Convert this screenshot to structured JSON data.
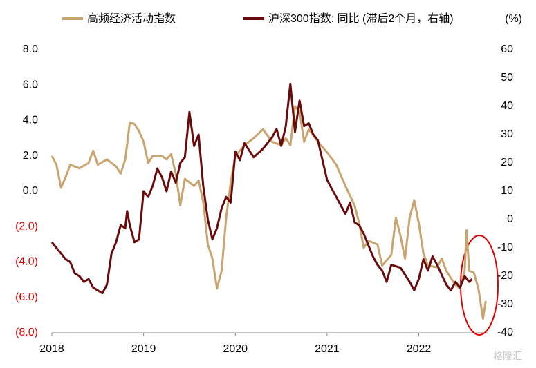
{
  "chart_data": {
    "type": "line",
    "y2_label": "(%)",
    "watermark": "格隆汇",
    "xlim": [
      2018,
      2022.75
    ],
    "xticks": [
      2018,
      2019,
      2020,
      2021,
      2022
    ],
    "ylim": [
      -8,
      8
    ],
    "yticks": [
      {
        "value": 8,
        "label": "8.0"
      },
      {
        "value": 6,
        "label": "6.0"
      },
      {
        "value": 4,
        "label": "4.0"
      },
      {
        "value": 2,
        "label": "2.0"
      },
      {
        "value": 0,
        "label": "0.0"
      },
      {
        "value": -2,
        "label": "(2.0)"
      },
      {
        "value": -4,
        "label": "(4.0)"
      },
      {
        "value": -6,
        "label": "(6.0)"
      },
      {
        "value": -8,
        "label": "(8.0)"
      }
    ],
    "negative_tick_color": "#e00000",
    "y2lim": [
      -40,
      60
    ],
    "y2ticks": [
      60,
      50,
      40,
      30,
      20,
      10,
      0,
      -10,
      -20,
      -30,
      -40
    ],
    "grid": false,
    "series": [
      {
        "name": "高频经济活动指数",
        "color": "#c9a46e",
        "axis": "y",
        "x": [
          2018.0,
          2018.05,
          2018.1,
          2018.15,
          2018.2,
          2018.3,
          2018.4,
          2018.45,
          2018.5,
          2018.6,
          2018.7,
          2018.75,
          2018.8,
          2018.85,
          2018.9,
          2018.95,
          2019.0,
          2019.05,
          2019.1,
          2019.2,
          2019.25,
          2019.3,
          2019.35,
          2019.4,
          2019.45,
          2019.5,
          2019.55,
          2019.6,
          2019.65,
          2019.7,
          2019.75,
          2019.8,
          2019.85,
          2019.9,
          2019.95,
          2020.0,
          2020.1,
          2020.2,
          2020.3,
          2020.4,
          2020.5,
          2020.55,
          2020.6,
          2020.65,
          2020.7,
          2020.75,
          2020.8,
          2020.9,
          2021.0,
          2021.1,
          2021.2,
          2021.3,
          2021.35,
          2021.4,
          2021.45,
          2021.55,
          2021.6,
          2021.7,
          2021.75,
          2021.8,
          2021.85,
          2021.9,
          2021.95,
          2022.0,
          2022.05,
          2022.1,
          2022.2,
          2022.25,
          2022.3,
          2022.4,
          2022.45,
          2022.5,
          2022.52,
          2022.55,
          2022.6,
          2022.65,
          2022.7,
          2022.73
        ],
        "values": [
          2.0,
          1.5,
          0.2,
          0.8,
          1.5,
          1.3,
          1.6,
          2.3,
          1.5,
          1.8,
          1.4,
          1.0,
          1.8,
          3.9,
          3.8,
          3.4,
          2.8,
          1.6,
          2.0,
          2.0,
          1.8,
          2.1,
          1.0,
          -0.8,
          0.7,
          0.5,
          0.3,
          0.6,
          -0.6,
          -3.0,
          -3.8,
          -5.5,
          -4.5,
          -1.5,
          0.5,
          2.0,
          2.6,
          3.0,
          3.5,
          2.8,
          2.6,
          3.0,
          2.6,
          4.8,
          4.5,
          2.8,
          3.5,
          2.8,
          2.2,
          1.5,
          0.3,
          -0.8,
          -1.8,
          -3.2,
          -2.8,
          -3.0,
          -4.2,
          -3.6,
          -1.5,
          -2.5,
          -3.8,
          -1.5,
          -0.5,
          -1.8,
          -3.5,
          -4.2,
          -4.3,
          -3.8,
          -4.5,
          -5.3,
          -5.5,
          -4.5,
          -2.2,
          -4.5,
          -4.6,
          -5.5,
          -7.2,
          -6.2
        ]
      },
      {
        "name": "沪深300指数: 同比 (滞后2个月，右轴)",
        "color": "#6b0a0a",
        "axis": "y2",
        "x": [
          2018.0,
          2018.05,
          2018.1,
          2018.15,
          2018.2,
          2018.25,
          2018.3,
          2018.35,
          2018.4,
          2018.45,
          2018.5,
          2018.55,
          2018.6,
          2018.65,
          2018.7,
          2018.75,
          2018.8,
          2018.82,
          2018.85,
          2018.9,
          2018.95,
          2019.0,
          2019.05,
          2019.1,
          2019.15,
          2019.2,
          2019.25,
          2019.3,
          2019.35,
          2019.4,
          2019.45,
          2019.5,
          2019.55,
          2019.6,
          2019.65,
          2019.7,
          2019.75,
          2019.8,
          2019.85,
          2019.9,
          2019.95,
          2020.0,
          2020.05,
          2020.1,
          2020.2,
          2020.3,
          2020.4,
          2020.45,
          2020.5,
          2020.55,
          2020.6,
          2020.65,
          2020.7,
          2020.75,
          2020.8,
          2020.85,
          2020.9,
          2021.0,
          2021.05,
          2021.1,
          2021.15,
          2021.2,
          2021.25,
          2021.3,
          2021.35,
          2021.4,
          2021.5,
          2021.55,
          2021.6,
          2021.65,
          2021.7,
          2021.8,
          2021.9,
          2021.95,
          2022.0,
          2022.05,
          2022.1,
          2022.15,
          2022.2,
          2022.3,
          2022.35,
          2022.4,
          2022.45,
          2022.5,
          2022.55,
          2022.58
        ],
        "values": [
          -8,
          -10,
          -12,
          -14,
          -15,
          -19,
          -20,
          -22,
          -21,
          -24,
          -25,
          -26,
          -23,
          -12,
          -8,
          -2,
          -3,
          3,
          -2,
          -8,
          -7,
          10,
          8,
          12,
          18,
          15,
          10,
          17,
          13,
          20,
          22,
          38,
          26,
          30,
          12,
          0,
          -7,
          -3,
          4,
          8,
          6,
          24,
          21,
          27,
          22,
          25,
          29,
          32,
          26,
          33,
          48,
          31,
          42,
          33,
          34,
          30,
          28,
          14,
          11,
          8,
          5,
          2,
          6,
          -1,
          -2,
          -5,
          -13,
          -16,
          -18,
          -22,
          -16,
          -17,
          -22,
          -25,
          -21,
          -14,
          -18,
          -13,
          -16,
          -23,
          -25,
          -22,
          -24,
          -20,
          -22,
          -21
        ]
      }
    ]
  }
}
